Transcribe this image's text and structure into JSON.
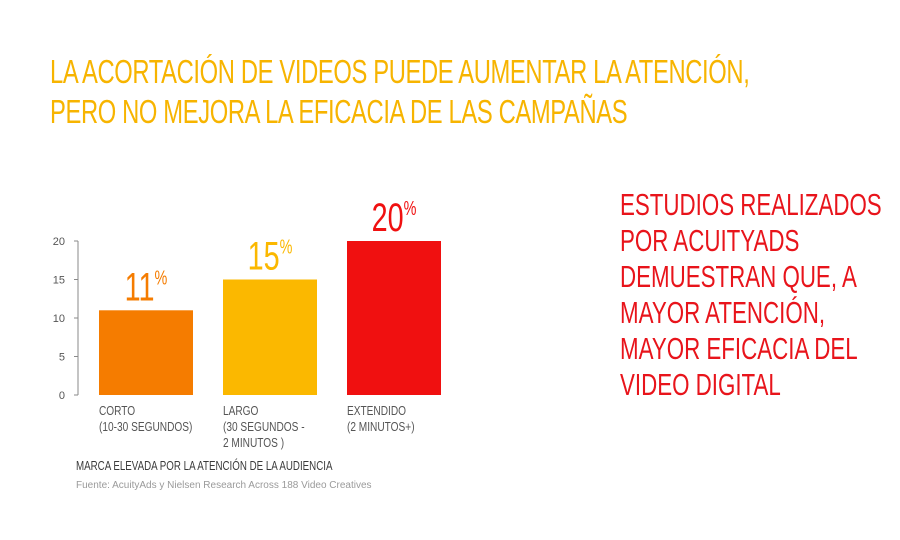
{
  "header": {
    "title_line1": "LA ACORTACIÓN DE VIDEOS PUEDE AUMENTAR LA ATENCIÓN,",
    "title_line2": "PERO NO MEJORA LA EFICACIA DE LAS CAMPAÑAS"
  },
  "side_note": {
    "lines": [
      "ESTUDIOS REALIZADOS",
      "POR ACUITYADS",
      "DEMUESTRAN QUE, A",
      "MAYOR ATENCIÓN,",
      "MAYOR EFICACIA DEL",
      "VIDEO DIGITAL"
    ]
  },
  "chart_data": {
    "type": "bar",
    "categories": [
      [
        "CORTO",
        "(10-30 SEGUNDOS)"
      ],
      [
        "LARGO",
        "(30 SEGUNDOS -",
        "2 MINUTOS )"
      ],
      [
        "EXTENDIDO",
        "(2 MINUTOS+)"
      ]
    ],
    "values": [
      11,
      15,
      20
    ],
    "value_labels": [
      "11",
      "15",
      "20"
    ],
    "value_suffix": "%",
    "colors": [
      "#f57c00",
      "#fbb800",
      "#f01010"
    ],
    "label_colors": [
      "#f57c00",
      "#fbb800",
      "#f01010"
    ],
    "ylim": [
      0,
      20
    ],
    "yticks": [
      0,
      5,
      10,
      15,
      20
    ],
    "grid": false
  },
  "legend_note": "MARCA ELEVADA POR LA ATENCIÓN DE LA AUDIENCIA",
  "source": "Fuente: AcuityAds y Nielsen Research Across 188 Video Creatives",
  "colors": {
    "title": "#f7b400",
    "side_text": "#e8141b",
    "axis": "#8a8a8a",
    "tick_text": "#555555"
  }
}
